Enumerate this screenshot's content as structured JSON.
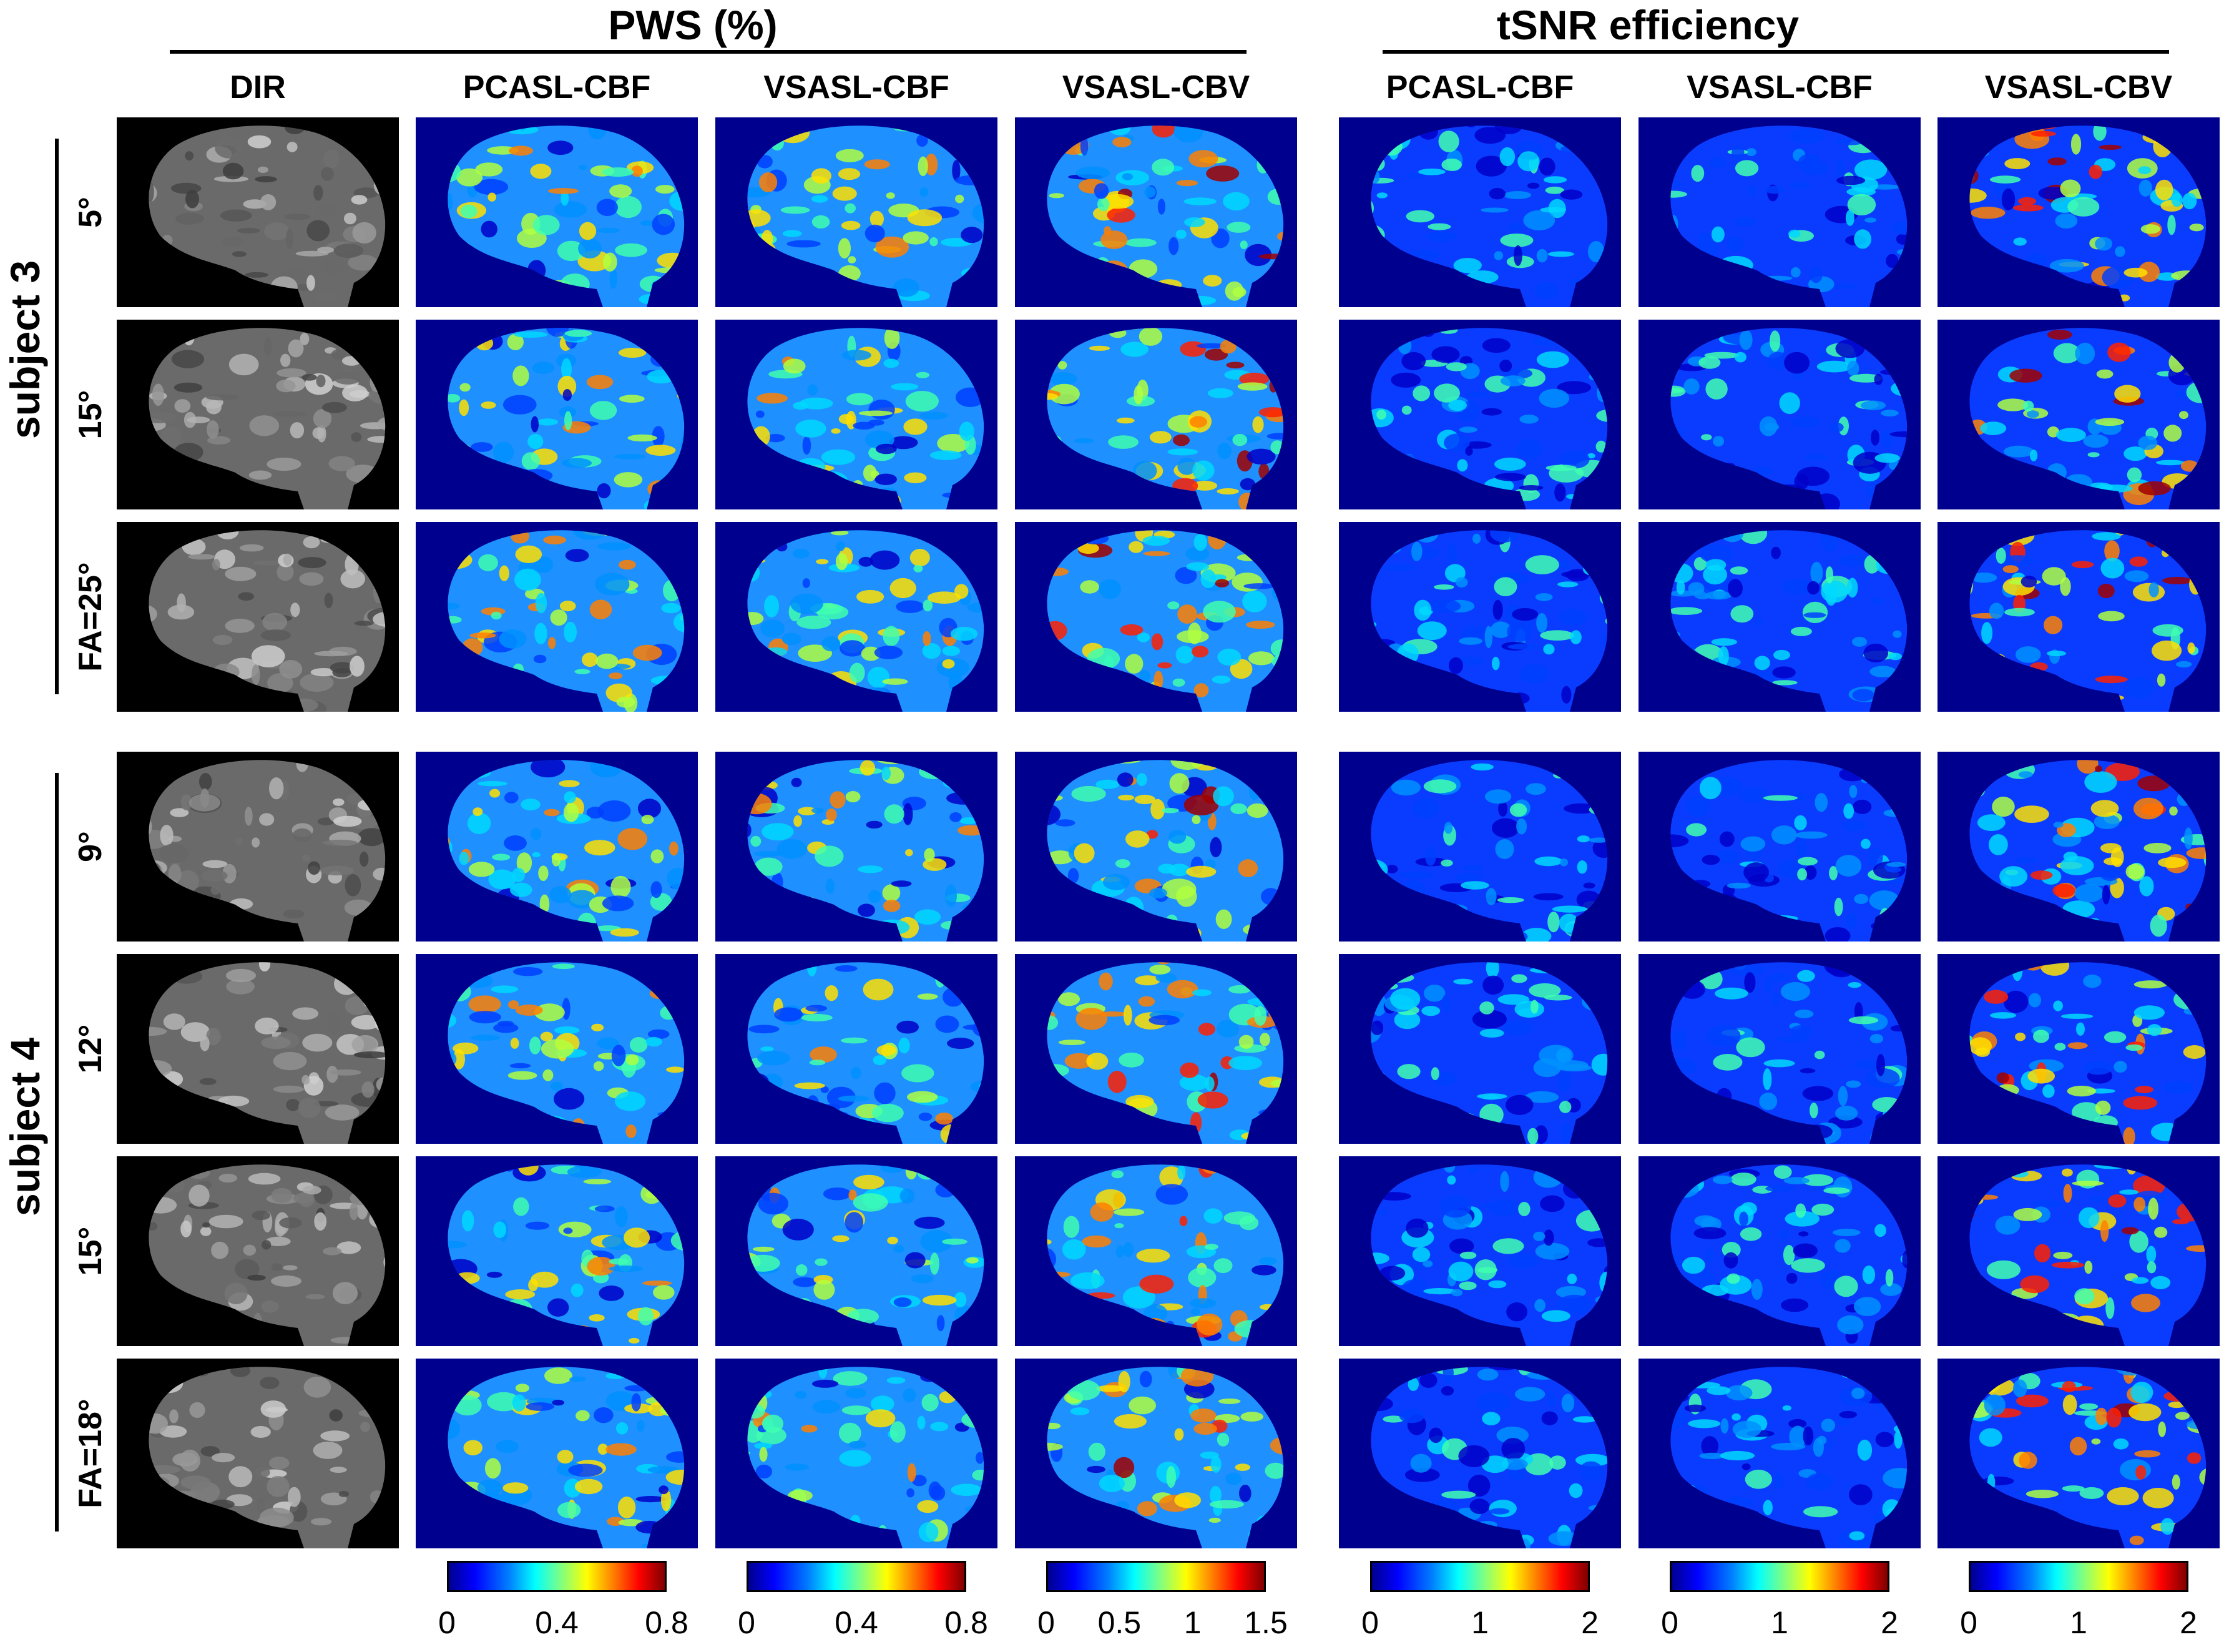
{
  "group_titles": {
    "pws": "PWS (%)",
    "tsnr": "tSNR efficiency"
  },
  "columns": [
    "DIR",
    "PCASL-CBF",
    "VSASL-CBF",
    "VSASL-CBV",
    "PCASL-CBF",
    "VSASL-CBF",
    "VSASL-CBV"
  ],
  "subjects": [
    {
      "label": "subject 3",
      "rows": [
        "5°",
        "15°",
        "FA=25°"
      ]
    },
    {
      "label": "subject 4",
      "rows": [
        "9°",
        "12°",
        "15°",
        "FA=18°"
      ]
    }
  ],
  "colorbars": [
    {
      "ticks": [
        "0",
        "0.4",
        "0.8"
      ]
    },
    {
      "ticks": [
        "0",
        "0.4",
        "0.8"
      ]
    },
    {
      "ticks": [
        "0",
        "0.5",
        "1",
        "1.5"
      ]
    },
    {
      "ticks": [
        "0",
        "1",
        "2"
      ]
    },
    {
      "ticks": [
        "0",
        "1",
        "2"
      ]
    },
    {
      "ticks": [
        "0",
        "1",
        "2"
      ]
    }
  ],
  "colors": {
    "background": "#00008f",
    "saturation": "#800000",
    "dir_background": "#000000"
  }
}
